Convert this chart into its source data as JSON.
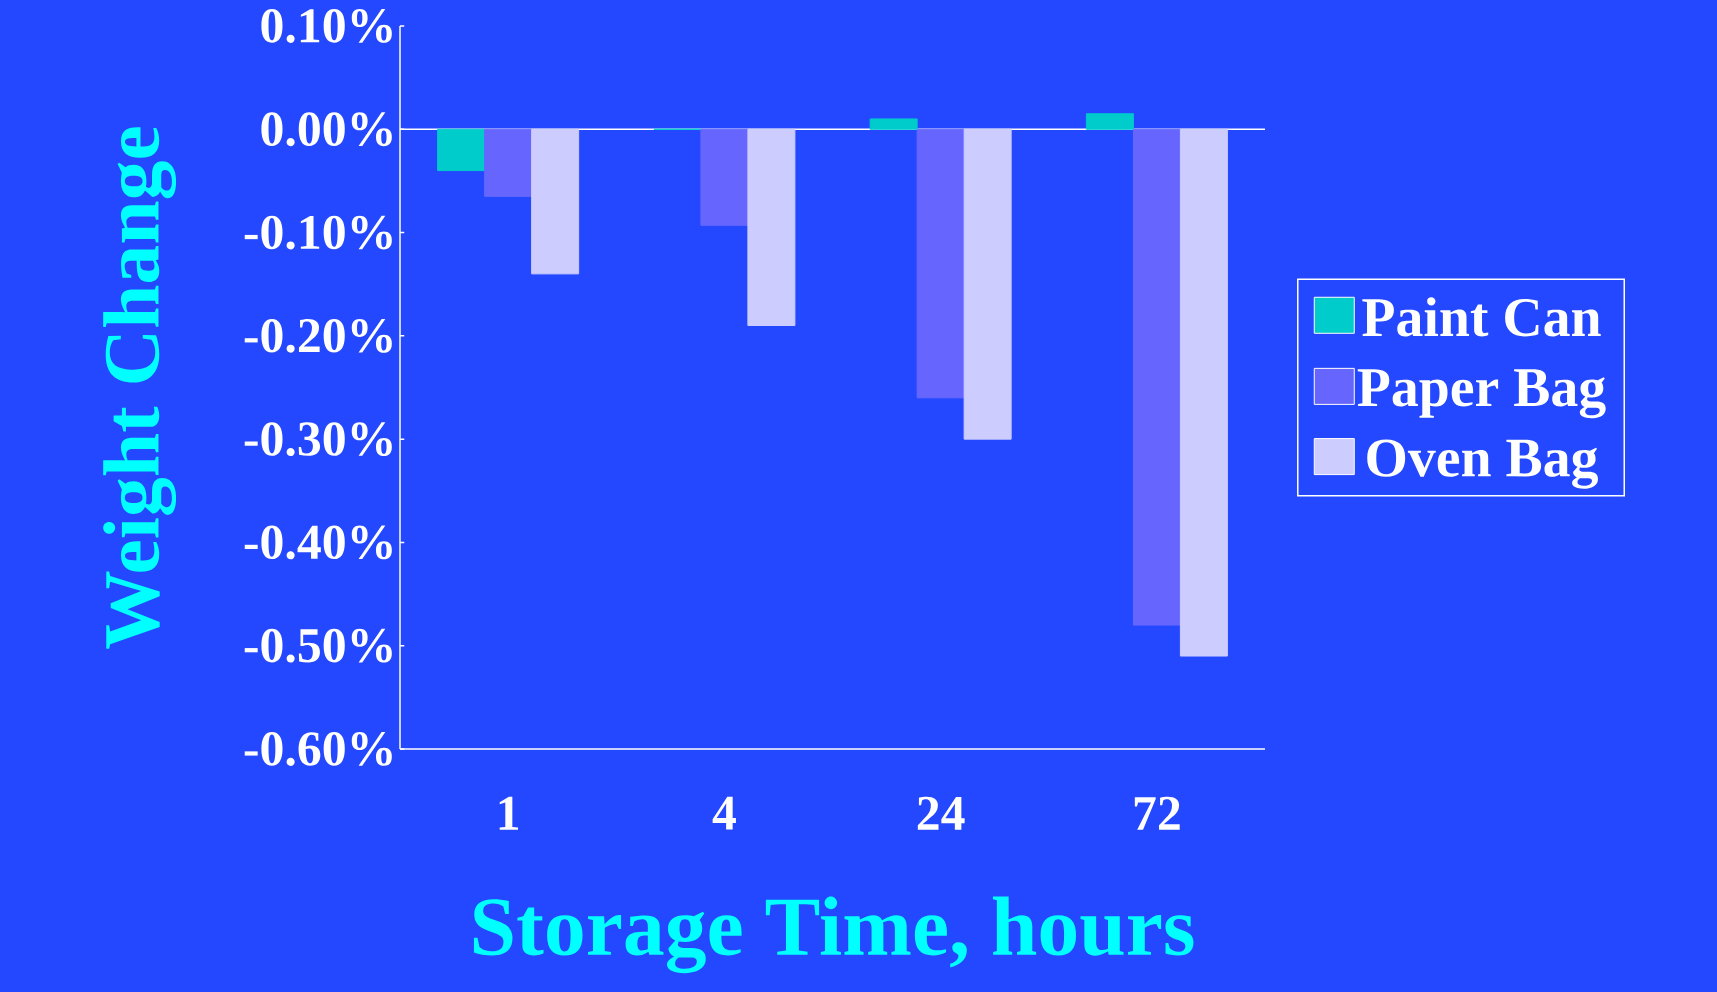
{
  "chart_data": {
    "type": "bar",
    "xlabel": "Storage Time, hours",
    "ylabel": "Weight Change",
    "categories": [
      "1",
      "4",
      "24",
      "72"
    ],
    "series": [
      {
        "name": "Paint Can",
        "color": "#00cccc",
        "values": [
          -0.04,
          0.0,
          0.01,
          0.015
        ]
      },
      {
        "name": "Paper Bag",
        "color": "#6666ff",
        "values": [
          -0.065,
          -0.093,
          -0.26,
          -0.48
        ]
      },
      {
        "name": "Oven Bag",
        "color": "#ccccff",
        "values": [
          -0.14,
          -0.19,
          -0.3,
          -0.51
        ]
      }
    ],
    "ylim": [
      -0.6,
      0.1
    ],
    "yticks": [
      {
        "value": 0.1,
        "label": "0.10%"
      },
      {
        "value": 0.0,
        "label": "0.00%"
      },
      {
        "value": -0.1,
        "label": "-0.10%"
      },
      {
        "value": -0.2,
        "label": "-0.20%"
      },
      {
        "value": -0.3,
        "label": "-0.30%"
      },
      {
        "value": -0.4,
        "label": "-0.40%"
      },
      {
        "value": -0.5,
        "label": "-0.50%"
      },
      {
        "value": -0.6,
        "label": "-0.60%"
      }
    ],
    "legend": "right"
  }
}
